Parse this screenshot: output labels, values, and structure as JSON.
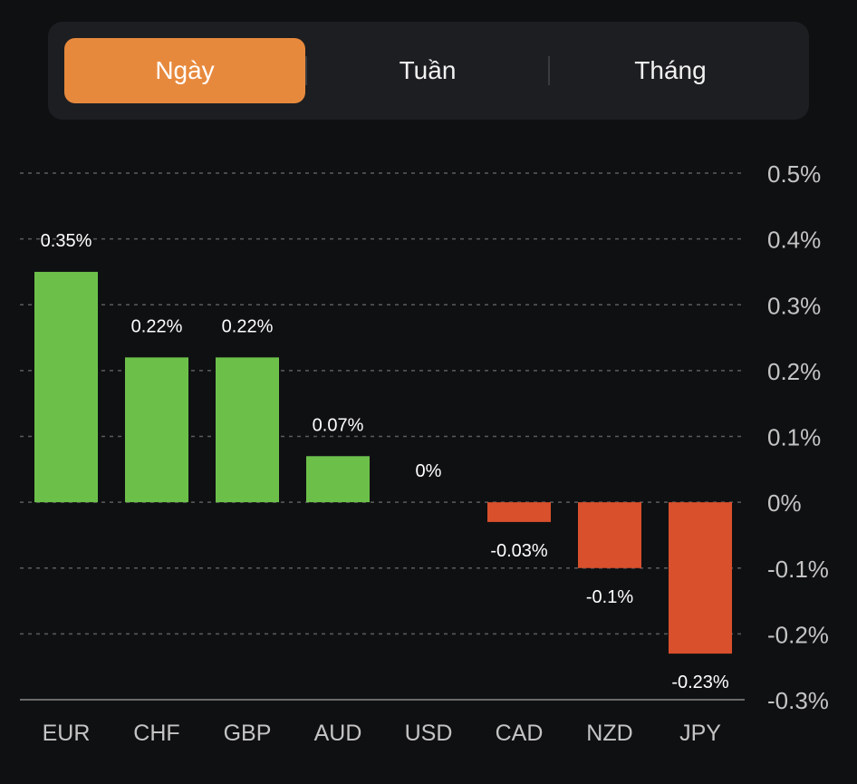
{
  "period_tabs": [
    {
      "label": "Ngày",
      "active": true
    },
    {
      "label": "Tuần",
      "active": false
    },
    {
      "label": "Tháng",
      "active": false
    }
  ],
  "colors": {
    "positive": "#6cc04a",
    "negative": "#d9502c",
    "accent": "#e7893d",
    "text": "#ffffff",
    "axis_text": "#c4c4c4",
    "grid": "#5c5c5c"
  },
  "chart_data": {
    "type": "bar",
    "title": "",
    "xlabel": "",
    "ylabel": "",
    "categories": [
      "EUR",
      "CHF",
      "GBP",
      "AUD",
      "USD",
      "CAD",
      "NZD",
      "JPY"
    ],
    "values": [
      0.35,
      0.22,
      0.22,
      0.07,
      0,
      -0.03,
      -0.1,
      -0.23
    ],
    "value_labels": [
      "0.35%",
      "0.22%",
      "0.22%",
      "0.07%",
      "0%",
      "-0.03%",
      "-0.1%",
      "-0.23%"
    ],
    "ylim": [
      -0.3,
      0.5
    ],
    "y_ticks": [
      0.5,
      0.4,
      0.3,
      0.2,
      0.1,
      0,
      -0.1,
      -0.2,
      -0.3
    ],
    "y_tick_labels": [
      "0.5%",
      "0.4%",
      "0.3%",
      "0.2%",
      "0.1%",
      "0%",
      "-0.1%",
      "-0.2%",
      "-0.3%"
    ],
    "y_axis_side": "right",
    "grid": true
  }
}
